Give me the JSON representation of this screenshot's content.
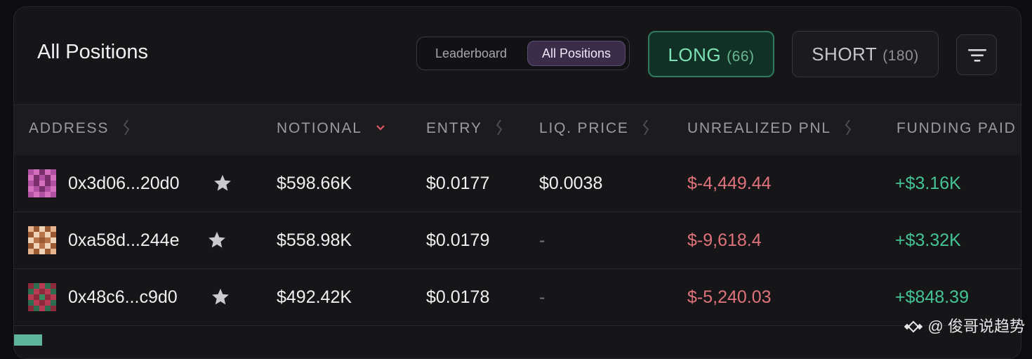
{
  "header": {
    "title": "All Positions",
    "toggle": {
      "leaderboard": "Leaderboard",
      "all_positions": "All Positions"
    },
    "long": {
      "label": "LONG",
      "count": "(66)"
    },
    "short": {
      "label": "SHORT",
      "count": "(180)"
    }
  },
  "columns": {
    "address": "ADDRESS",
    "notional": "NOTIONAL",
    "entry": "ENTRY",
    "liq_price": "LIQ. PRICE",
    "unrealized_pnl": "UNREALIZED PNL",
    "funding_paid": "FUNDING PAID"
  },
  "rows": [
    {
      "address": "0x3d06...20d0",
      "notional": "$598.66K",
      "entry": "$0.0177",
      "liq_price": "$0.0038",
      "pnl": "$-4,449.44",
      "funding": "+$3.16K"
    },
    {
      "address": "0xa58d...244e",
      "notional": "$558.98K",
      "entry": "$0.0179",
      "liq_price": "-",
      "pnl": "$-9,618.4",
      "funding": "+$3.32K"
    },
    {
      "address": "0x48c6...c9d0",
      "notional": "$492.42K",
      "entry": "$0.0178",
      "liq_price": "-",
      "pnl": "$-5,240.03",
      "funding": "+$848.39"
    }
  ],
  "watermark": {
    "text": "@ 俊哥说趋势"
  },
  "colors": {
    "long_accent": "#7de3b6",
    "negative": "#e0727c",
    "positive": "#45c493",
    "sort_active": "#e0576a"
  }
}
